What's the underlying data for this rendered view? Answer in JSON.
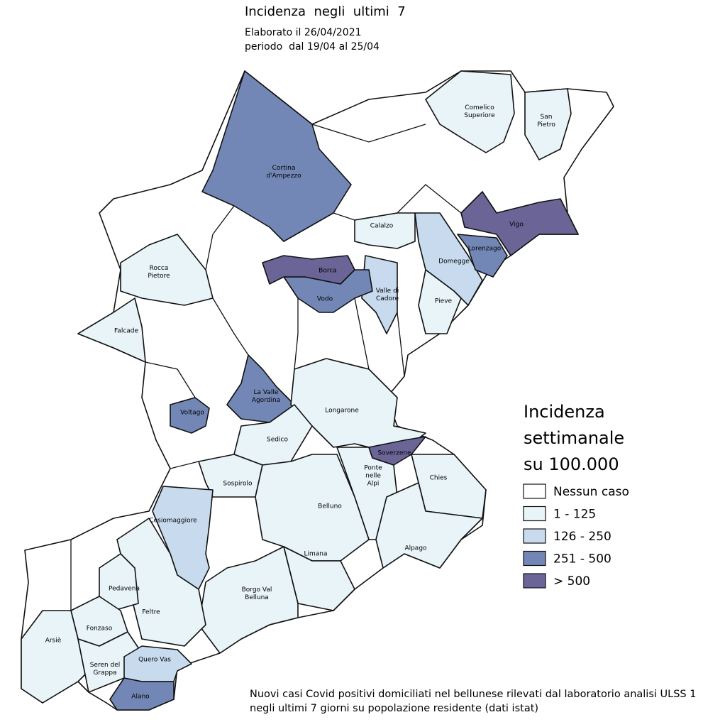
{
  "header": {
    "title": "Incidenza  negli  ultimi  7",
    "subtitle": "Elaborato il 26/04/2021",
    "period": "periodo  dal 19/04 al 25/04"
  },
  "legend": {
    "title": [
      "Incidenza",
      "settimanale",
      "su 100.000"
    ],
    "classes": [
      {
        "label": "Nessun caso",
        "color": "#ffffff"
      },
      {
        "label": "1 - 125",
        "color": "#e8f4f8"
      },
      {
        "label": "126 - 250",
        "color": "#c8dbee"
      },
      {
        "label": "251 - 500",
        "color": "#7387b6"
      },
      {
        "label": "> 500",
        "color": "#6b6597"
      }
    ]
  },
  "municipalities": [
    {
      "label": [
        "Comelico",
        "Superiore"
      ],
      "class": 1
    },
    {
      "label": [
        "San",
        "Pietro"
      ],
      "class": 1
    },
    {
      "label": [
        "Cortina",
        "d'Ampezzo"
      ],
      "class": 3
    },
    {
      "label": [
        "Vigo"
      ],
      "class": 4
    },
    {
      "label": [
        "Domegge"
      ],
      "class": 2
    },
    {
      "label": [
        "Lorenzago"
      ],
      "class": 3
    },
    {
      "label": [
        "Calalzo"
      ],
      "class": 1
    },
    {
      "label": [
        "Pieve"
      ],
      "class": 1
    },
    {
      "label": [
        "Valle di",
        "Cadore"
      ],
      "class": 2
    },
    {
      "label": [
        "Vodo"
      ],
      "class": 3
    },
    {
      "label": [
        "Borca"
      ],
      "class": 4
    },
    {
      "label": [
        "Rocca",
        "Pietore"
      ],
      "class": 1
    },
    {
      "label": [
        "Falcade"
      ],
      "class": 1
    },
    {
      "label": [
        "La Valle",
        "Agordina"
      ],
      "class": 3
    },
    {
      "label": [
        "Voltago"
      ],
      "class": 3
    },
    {
      "label": [
        "Longarone"
      ],
      "class": 1
    },
    {
      "label": [
        "Sedico"
      ],
      "class": 1
    },
    {
      "label": [
        "Sospirolo"
      ],
      "class": 1
    },
    {
      "label": [
        "Ponte",
        "nelle",
        "Alpi"
      ],
      "class": 1
    },
    {
      "label": [
        "Chies"
      ],
      "class": 1
    },
    {
      "label": [
        "Belluno"
      ],
      "class": 1
    },
    {
      "label": [
        "Alpago"
      ],
      "class": 1
    },
    {
      "label": [
        "Limana"
      ],
      "class": 1
    },
    {
      "label": [
        "Borgo Val",
        "Belluna"
      ],
      "class": 1
    },
    {
      "label": [
        "Cesiomaggiore"
      ],
      "class": 2
    },
    {
      "label": [
        "Feltre"
      ],
      "class": 1
    },
    {
      "label": [
        "Pedavena"
      ],
      "class": 1
    },
    {
      "label": [
        "Fonzaso"
      ],
      "class": 1
    },
    {
      "label": [
        "Arsiè"
      ],
      "class": 1
    },
    {
      "label": [
        "Seren del",
        "Grappa"
      ],
      "class": 1
    },
    {
      "label": [
        "Quero Vas"
      ],
      "class": 2
    },
    {
      "label": [
        "Alano"
      ],
      "class": 3
    },
    {
      "label": [
        "Soverzene"
      ],
      "class": 4
    }
  ],
  "footnote": [
    "Nuovi casi Covid positivi domiciliati nel bellunese rilevati dal laboratorio analisi ULSS 1",
    "negli ultimi 7 giorni su popolazione residente (dati istat)"
  ]
}
